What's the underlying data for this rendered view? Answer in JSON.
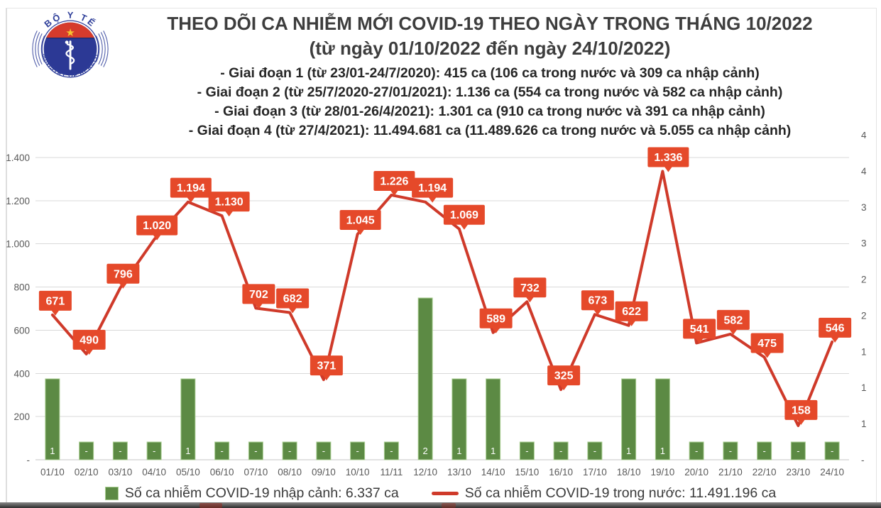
{
  "header": {
    "logo": {
      "top_text": "BỘ Y TẾ",
      "bottom_text": "MINISTRY OF HEALTH"
    },
    "title": "THEO DÕI CA NHIỄM MỚI COVID-19 THEO NGÀY TRONG THÁNG 10/2022",
    "subtitle": "(từ ngày 01/10/2022 đến ngày 24/10/2022)",
    "phases": [
      "- Giai đoạn 1 (từ 23/01-24/7/2020): 415 ca (106 ca trong nước và 309 ca nhập cảnh)",
      "- Giai đoạn 2 (từ 25/7/2020-27/01/2021): 1.136 ca (554 ca trong nước và 582 ca nhập cảnh)",
      "- Giai đoạn 3 (từ 28/01-26/4/2021): 1.301 ca (910 ca trong nước và 391 ca nhập cảnh)",
      "- Giai đoạn 4 (từ 27/4/2021): 11.494.681 ca (11.489.626 ca trong nước và 5.055 ca nhập cảnh)"
    ]
  },
  "chart_data": {
    "type": "line+bar",
    "categories": [
      "01/10",
      "02/10",
      "03/10",
      "04/10",
      "05/10",
      "06/10",
      "07/10",
      "08/10",
      "09/10",
      "10/10",
      "11/11",
      "12/10",
      "13/10",
      "14/10",
      "15/10",
      "16/10",
      "17/10",
      "18/10",
      "19/10",
      "20/10",
      "21/10",
      "22/10",
      "23/10",
      "24/10"
    ],
    "series": [
      {
        "name": "Số ca nhiễm COVID-19 trong nước",
        "type": "line",
        "color": "#cf3a2a",
        "label_bg": "#e5492a",
        "values": [
          671,
          490,
          796,
          1020,
          1194,
          1130,
          702,
          682,
          371,
          1045,
          1226,
          1194,
          1069,
          589,
          732,
          325,
          673,
          622,
          1336,
          541,
          582,
          475,
          158,
          546
        ],
        "labels": [
          "671",
          "490",
          "796",
          "1.020",
          "1.194",
          "1.130",
          "702",
          "682",
          "371",
          "1.045",
          "1.226",
          "1.194",
          "1.069",
          "589",
          "732",
          "325",
          "673",
          "622",
          "1.336",
          "541",
          "582",
          "475",
          "158",
          "546"
        ]
      },
      {
        "name": "Số ca nhiễm COVID-19 nhập cảnh",
        "type": "bar",
        "color": "#5c8a44",
        "border": "#a8cd90",
        "values": [
          1,
          0,
          0,
          0,
          1,
          0,
          0,
          0,
          0,
          0,
          0,
          2,
          1,
          1,
          0,
          0,
          0,
          1,
          1,
          0,
          0,
          0,
          0,
          0
        ],
        "labels": [
          "1",
          "-",
          "-",
          "-",
          "1",
          "-",
          "-",
          "-",
          "-",
          "-",
          "-",
          "2",
          "1",
          "1",
          "-",
          "-",
          "-",
          "1",
          "1",
          "-",
          "-",
          "-",
          "-",
          "-"
        ]
      }
    ],
    "left_axis": {
      "min": 0,
      "max": 1400,
      "ticks": [
        "1.400",
        "1.200",
        "1.000",
        "800",
        "600",
        "400",
        "200",
        "-"
      ],
      "tick_values": [
        1400,
        1200,
        1000,
        800,
        600,
        400,
        200,
        0
      ]
    },
    "right_axis": {
      "ticks": [
        "4",
        "4",
        "3",
        "3",
        "2",
        "2",
        "1",
        "1",
        "1",
        "-"
      ]
    },
    "grid": true,
    "legend_position": "bottom",
    "legend": [
      {
        "marker": "bar",
        "label": "Số ca nhiễm COVID-19 nhập cảnh: 6.337 ca"
      },
      {
        "marker": "line",
        "label": "Số ca nhiễm COVID-19 trong nước: 11.491.196 ca"
      }
    ]
  },
  "colors": {
    "line_red": "#cf3a2a",
    "label_red": "#e5492a",
    "bar_green": "#5c8a44",
    "bar_border": "#a8cd90",
    "axis_text": "#595959",
    "gridline": "#d9d9d9",
    "title_text": "#3d3d3d"
  }
}
